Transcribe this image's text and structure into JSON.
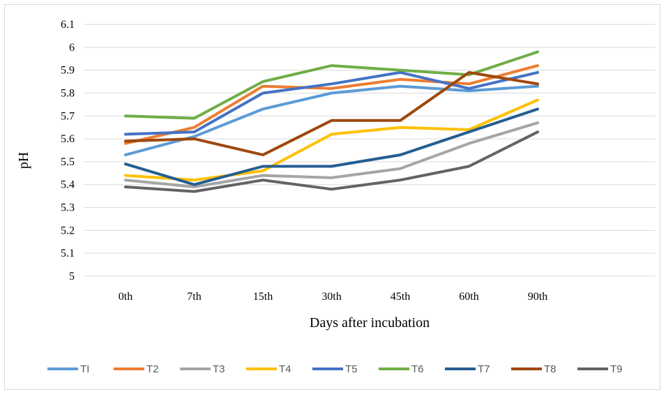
{
  "chart_data": {
    "type": "line",
    "title": "",
    "xlabel": "Days after incubation",
    "ylabel": "pH",
    "categories": [
      "0th",
      "7th",
      "15th",
      "30th",
      "45th",
      "60th",
      "90th"
    ],
    "ylim": [
      5,
      6.1
    ],
    "yticks": [
      "5",
      "5.1",
      "5.2",
      "5.3",
      "5.4",
      "5.5",
      "5.6",
      "5.7",
      "5.8",
      "5.9",
      "6",
      "6.1"
    ],
    "grid": true,
    "legend": "bottom",
    "series": [
      {
        "name": "TI",
        "color": "#5B9BD5",
        "values": [
          5.53,
          5.61,
          5.73,
          5.8,
          5.83,
          5.81,
          5.83
        ]
      },
      {
        "name": "T2",
        "color": "#ED7D31",
        "values": [
          5.58,
          5.65,
          5.83,
          5.82,
          5.86,
          5.84,
          5.92
        ]
      },
      {
        "name": "T3",
        "color": "#A5A5A5",
        "values": [
          5.42,
          5.39,
          5.44,
          5.43,
          5.47,
          5.58,
          5.67
        ]
      },
      {
        "name": "T4",
        "color": "#FFC000",
        "values": [
          5.44,
          5.42,
          5.46,
          5.62,
          5.65,
          5.64,
          5.77
        ]
      },
      {
        "name": "T5",
        "color": "#4472C4",
        "values": [
          5.62,
          5.63,
          5.8,
          5.84,
          5.89,
          5.82,
          5.89
        ]
      },
      {
        "name": "T6",
        "color": "#70AD47",
        "values": [
          5.7,
          5.69,
          5.85,
          5.92,
          5.9,
          5.88,
          5.98
        ]
      },
      {
        "name": "T7",
        "color": "#255E91",
        "values": [
          5.49,
          5.4,
          5.48,
          5.48,
          5.53,
          5.63,
          5.73
        ]
      },
      {
        "name": "T8",
        "color": "#9E480E",
        "values": [
          5.59,
          5.6,
          5.53,
          5.68,
          5.68,
          5.89,
          5.84
        ]
      },
      {
        "name": "T9",
        "color": "#636363",
        "values": [
          5.39,
          5.37,
          5.42,
          5.38,
          5.42,
          5.48,
          5.63
        ]
      }
    ]
  }
}
